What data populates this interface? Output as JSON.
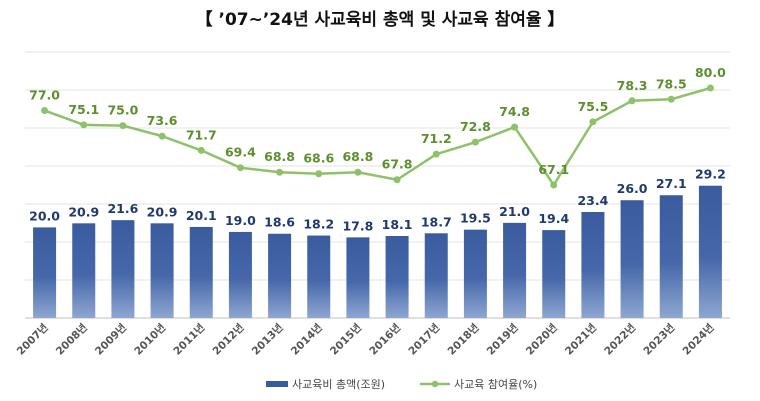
{
  "title": "【 ’07~’24년 사교육비 총액 및 사교육 참여율 】",
  "chart_data": {
    "type": "bar",
    "title": "【 ’07~’24년 사교육비 총액 및 사교육 참여율 】",
    "categories": [
      "2007년",
      "2008년",
      "2009년",
      "2010년",
      "2011년",
      "2012년",
      "2013년",
      "2014년",
      "2015년",
      "2016년",
      "2017년",
      "2018년",
      "2019년",
      "2020년",
      "2021년",
      "2022년",
      "2023년",
      "2024년"
    ],
    "series": [
      {
        "name": "사교육비 총액(조원)",
        "type": "bar",
        "color": "#3a5c9e",
        "values": [
          20.0,
          20.9,
          21.6,
          20.9,
          20.1,
          19.0,
          18.6,
          18.2,
          17.8,
          18.1,
          18.7,
          19.5,
          21.0,
          19.4,
          23.4,
          26.0,
          27.1,
          29.2
        ],
        "labels": [
          "20.0",
          "20.9",
          "21.6",
          "20.9",
          "20.1",
          "19.0",
          "18.6",
          "18.2",
          "17.8",
          "18.1",
          "18.7",
          "19.5",
          "21.0",
          "19.4",
          "23.4",
          "26.0",
          "27.1",
          "29.2"
        ]
      },
      {
        "name": "사교육 참여율(%)",
        "type": "line",
        "color": "#8fc16a",
        "values": [
          77.0,
          75.1,
          75.0,
          73.6,
          71.7,
          69.4,
          68.8,
          68.6,
          68.8,
          67.8,
          71.2,
          72.8,
          74.8,
          67.1,
          75.5,
          78.3,
          78.5,
          80.0
        ],
        "labels": [
          "77.0",
          "75.1",
          "75.0",
          "73.6",
          "71.7",
          "69.4",
          "68.8",
          "68.6",
          "68.8",
          "67.8",
          "71.2",
          "72.8",
          "74.8",
          "67.1",
          "75.5",
          "78.3",
          "78.5",
          "80.0"
        ]
      }
    ],
    "legend": "bottom-center",
    "grid": true
  }
}
